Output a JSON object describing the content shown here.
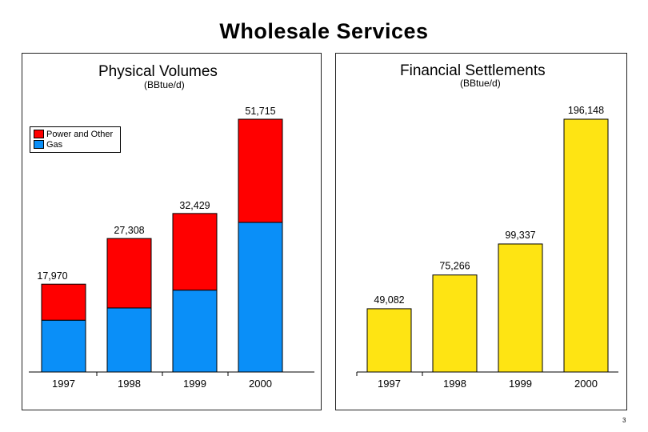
{
  "page": {
    "title": "Wholesale Services",
    "page_number": "3"
  },
  "colors": {
    "power": "#ff0000",
    "gas": "#0a8ff8",
    "settlements": "#fee413",
    "outline": "#000000"
  },
  "chart_data": [
    {
      "type": "bar",
      "stacked": true,
      "title": "Physical Volumes",
      "subtitle": "(BBtue/d)",
      "categories": [
        "1997",
        "1998",
        "1999",
        "2000"
      ],
      "series": [
        {
          "name": "Gas",
          "color_key": "gas",
          "values": [
            10600,
            13100,
            16750,
            30600
          ]
        },
        {
          "name": "Power and Other",
          "color_key": "power",
          "values": [
            7370,
            14208,
            15679,
            21115
          ]
        }
      ],
      "totals": [
        17970,
        27308,
        32429,
        51715
      ],
      "data_labels": [
        "17,970",
        "27,308",
        "32,429",
        "51,715"
      ],
      "ylim": [
        0,
        51715
      ],
      "legend": "top-left",
      "grid": false
    },
    {
      "type": "bar",
      "title": "Financial Settlements",
      "subtitle": "(BBtue/d)",
      "categories": [
        "1997",
        "1998",
        "1999",
        "2000"
      ],
      "values": [
        49082,
        75266,
        99337,
        196148
      ],
      "data_labels": [
        "49,082",
        "75,266",
        "99,337",
        "196,148"
      ],
      "color_key": "settlements",
      "ylim": [
        0,
        196148
      ],
      "legend": "none",
      "grid": false
    }
  ]
}
